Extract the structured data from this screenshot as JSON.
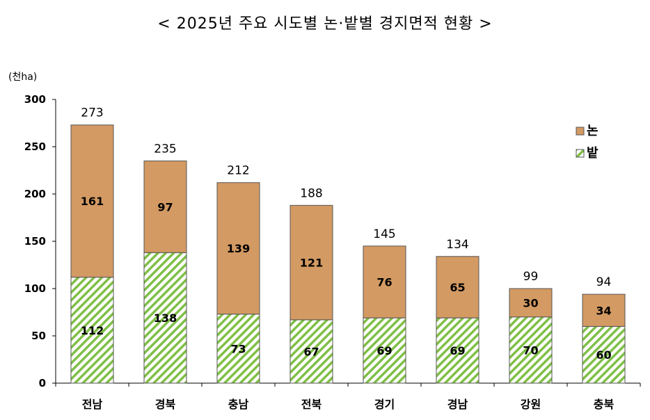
{
  "chart_data": {
    "type": "bar",
    "stacked": true,
    "title": "< 2025년 주요 시도별 논·밭별 경지면적 현황 >",
    "unit": "(천ha)",
    "xlabel": "",
    "ylabel": "",
    "ylim": [
      0,
      300
    ],
    "yticks": [
      0,
      50,
      100,
      150,
      200,
      250,
      300
    ],
    "categories": [
      "전남",
      "경북",
      "충남",
      "전북",
      "경기",
      "경남",
      "강원",
      "충북"
    ],
    "series": [
      {
        "name": "밭",
        "values": [
          112,
          138,
          73,
          67,
          69,
          69,
          70,
          60
        ],
        "color": "#8cc84b",
        "pattern": "diagonal-hatch"
      },
      {
        "name": "논",
        "values": [
          161,
          97,
          139,
          121,
          76,
          65,
          30,
          34
        ],
        "color": "#d39a63",
        "pattern": "solid"
      }
    ],
    "totals": [
      273,
      235,
      212,
      188,
      145,
      134,
      99,
      94
    ],
    "legend": {
      "position": "top-right",
      "order": [
        "논",
        "밭"
      ]
    },
    "grid": false
  }
}
